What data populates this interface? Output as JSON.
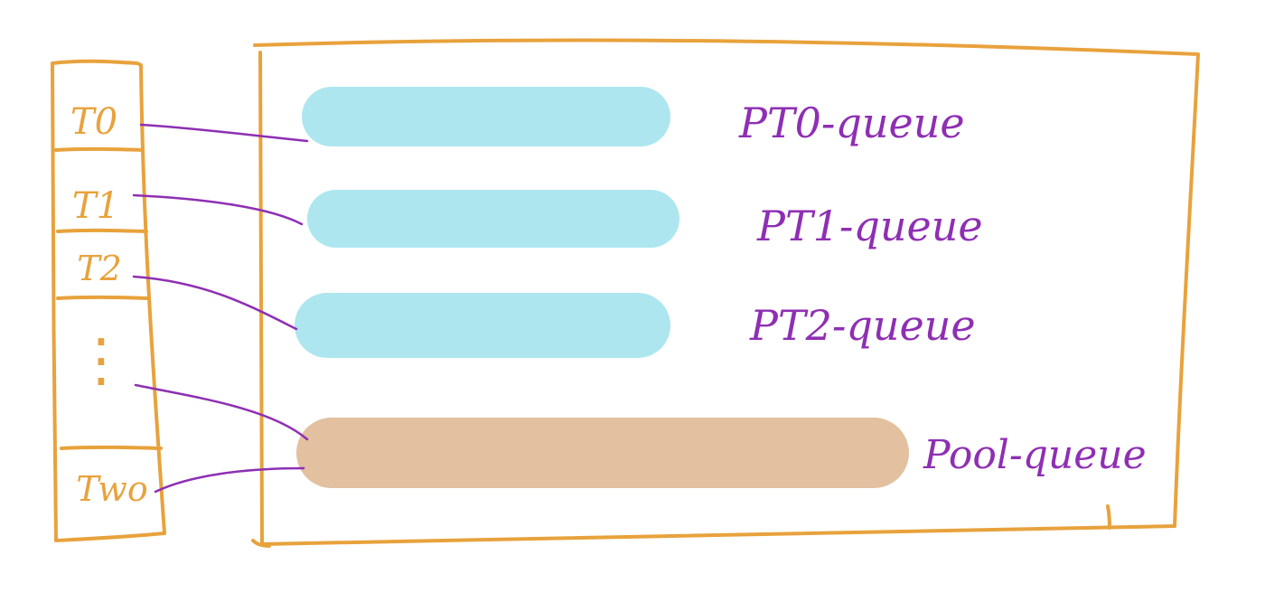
{
  "colors": {
    "frame": "#e8a23c",
    "connector": "#8e2fb3",
    "label": "#8e2fb3",
    "queue_fill": "#ade6ef",
    "pool_fill": "#e2c0a0",
    "background": "#ffffff"
  },
  "threads": {
    "items": [
      {
        "label": "T0"
      },
      {
        "label": "T1"
      },
      {
        "label": "T2"
      },
      {
        "label": "Two"
      }
    ],
    "ellipsis": "⋮"
  },
  "queues": {
    "items": [
      {
        "label": "PT0-queue",
        "kind": "per-thread"
      },
      {
        "label": "PT1-queue",
        "kind": "per-thread"
      },
      {
        "label": "PT2-queue",
        "kind": "per-thread"
      },
      {
        "label": "Pool-queue",
        "kind": "pool"
      }
    ]
  }
}
